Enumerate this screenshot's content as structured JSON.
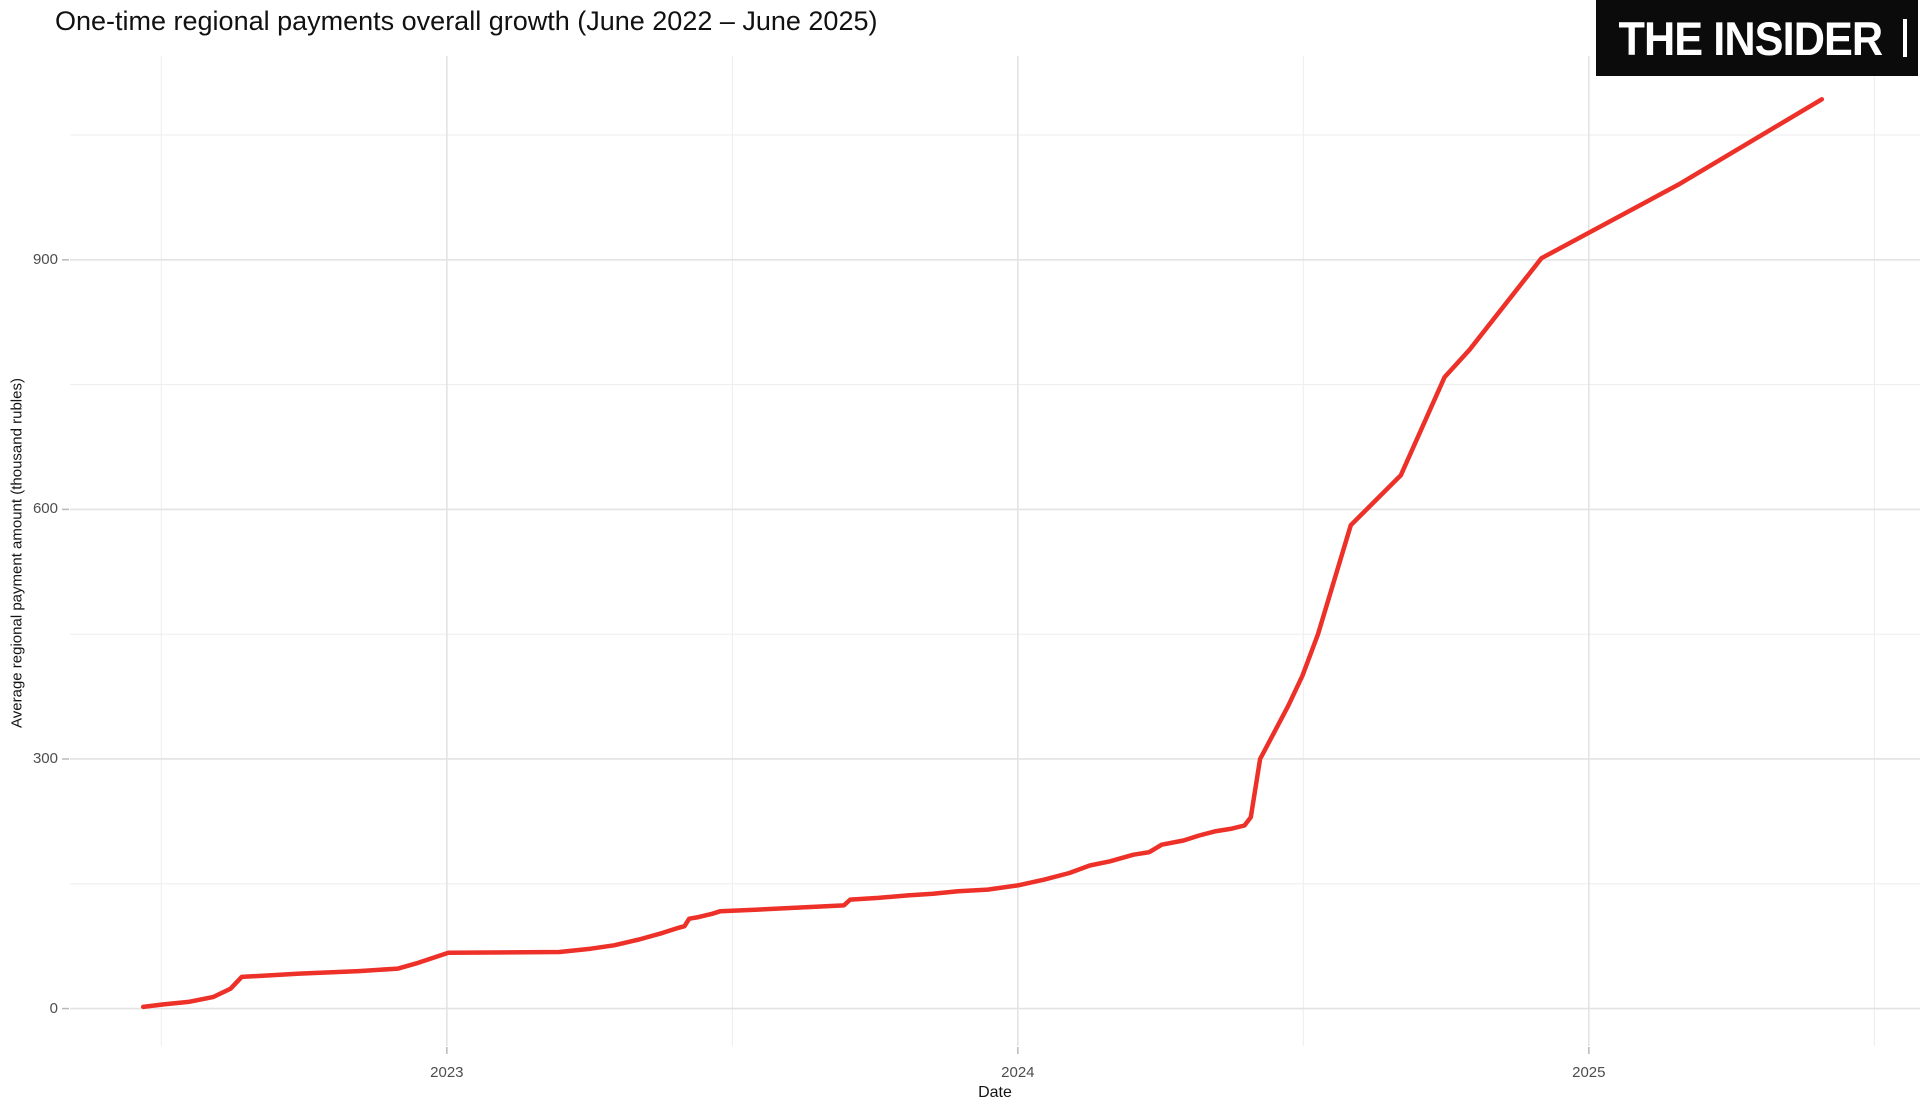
{
  "logo": {
    "text": "THE INSIDER"
  },
  "chart_data": {
    "type": "line",
    "title": "One-time regional payments overall growth (June 2022 – June 2025)",
    "xlabel": "Date",
    "ylabel": "Average regional payment amount (thousand rubles)",
    "x_tick_labels": [
      "2023",
      "2024",
      "2025"
    ],
    "x_tick_positions": [
      2023,
      2024,
      2025
    ],
    "x_minor_gridlines": [
      2022.5,
      2023.5,
      2024.5,
      2025.5
    ],
    "y_tick_labels": [
      "0",
      "300",
      "600",
      "900"
    ],
    "y_tick_values": [
      0,
      300,
      600,
      900
    ],
    "y_minor_gridlines": [
      150,
      450,
      750,
      1050
    ],
    "x_range": [
      2022.34,
      2025.58
    ],
    "y_range": [
      -45,
      1145
    ],
    "grid_major_color": "#e3e3e3",
    "grid_minor_color": "#ededed",
    "line_color": "#ed3028",
    "series": [
      {
        "points": [
          [
            "2022-06-21",
            2
          ],
          [
            "2022-07-04",
            5
          ],
          [
            "2022-07-20",
            8
          ],
          [
            "2022-08-05",
            14
          ],
          [
            "2022-08-16",
            24
          ],
          [
            "2022-08-23",
            38
          ],
          [
            "2022-09-29",
            42
          ],
          [
            "2022-11-06",
            45
          ],
          [
            "2022-12-01",
            48
          ],
          [
            "2022-12-14",
            55
          ],
          [
            "2023-01-02",
            67
          ],
          [
            "2023-03-14",
            68
          ],
          [
            "2023-04-03",
            72
          ],
          [
            "2023-04-18",
            76
          ],
          [
            "2023-05-04",
            83
          ],
          [
            "2023-05-19",
            91
          ],
          [
            "2023-05-29",
            97
          ],
          [
            "2023-06-02",
            99
          ],
          [
            "2023-06-05",
            108
          ],
          [
            "2023-06-11",
            110
          ],
          [
            "2023-06-20",
            114
          ],
          [
            "2023-06-25",
            117
          ],
          [
            "2023-07-19",
            119
          ],
          [
            "2023-08-20",
            122
          ],
          [
            "2023-09-12",
            124
          ],
          [
            "2023-09-16",
            131
          ],
          [
            "2023-10-04",
            133
          ],
          [
            "2023-10-23",
            136
          ],
          [
            "2023-11-08",
            138
          ],
          [
            "2023-11-24",
            141
          ],
          [
            "2023-12-13",
            143
          ],
          [
            "2024-01-01",
            148
          ],
          [
            "2024-01-18",
            155
          ],
          [
            "2024-02-03",
            163
          ],
          [
            "2024-02-16",
            172
          ],
          [
            "2024-02-29",
            177
          ],
          [
            "2024-03-15",
            185
          ],
          [
            "2024-03-25",
            188
          ],
          [
            "2024-04-02",
            197
          ],
          [
            "2024-04-16",
            202
          ],
          [
            "2024-04-26",
            208
          ],
          [
            "2024-05-06",
            213
          ],
          [
            "2024-05-16",
            216
          ],
          [
            "2024-05-25",
            220
          ],
          [
            "2024-05-29",
            230
          ],
          [
            "2024-06-04",
            300
          ],
          [
            "2024-06-22",
            364
          ],
          [
            "2024-07-01",
            400
          ],
          [
            "2024-07-11",
            450
          ],
          [
            "2024-08-01",
            581
          ],
          [
            "2024-09-02",
            641
          ],
          [
            "2024-09-30",
            759
          ],
          [
            "2024-10-16",
            792
          ],
          [
            "2024-12-01",
            902
          ],
          [
            "2025-02-27",
            990
          ],
          [
            "2025-05-30",
            1093
          ]
        ]
      }
    ]
  }
}
